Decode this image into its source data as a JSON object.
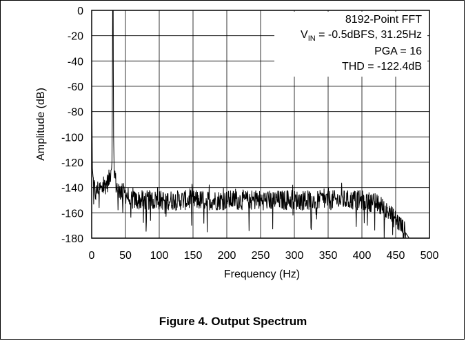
{
  "figure": {
    "caption": "Figure 4. Output Spectrum"
  },
  "chart_data": {
    "type": "line",
    "xlabel": "Frequency (Hz)",
    "ylabel": "Amplitude (dB)",
    "xlim": [
      0,
      500
    ],
    "ylim": [
      -180,
      0
    ],
    "xticks": [
      0,
      50,
      100,
      150,
      200,
      250,
      300,
      350,
      400,
      450,
      500
    ],
    "yticks": [
      0,
      -20,
      -40,
      -60,
      -80,
      -100,
      -120,
      -140,
      -160,
      -180
    ],
    "grid": true,
    "annotations": {
      "line1": "8192-Point FFT",
      "line2_prefix": "V",
      "line2_sub": "IN",
      "line2_suffix": " = -0.5dBFS, 31.25Hz",
      "line3": "PGA = 16",
      "line4": "THD = -122.4dB"
    },
    "series": [
      {
        "color": "#000000",
        "peak": {
          "x": 31.25,
          "y": -0.5
        },
        "description_points": {
          "x": [
            0,
            1,
            3,
            6,
            10,
            15,
            20,
            25,
            28,
            30,
            31.25,
            33,
            36,
            40,
            50,
            60,
            100,
            200,
            300,
            400,
            420,
            440,
            455,
            465,
            470
          ],
          "y": [
            -50,
            -125,
            -138,
            -145,
            -140,
            -142,
            -138,
            -135,
            -128,
            -118,
            -0.5,
            -122,
            -138,
            -142,
            -145,
            -150,
            -150,
            -150,
            -150,
            -150,
            -152,
            -160,
            -168,
            -176,
            -180
          ]
        }
      }
    ]
  }
}
